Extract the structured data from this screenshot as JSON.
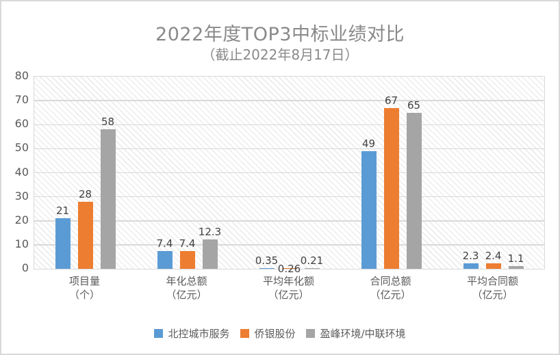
{
  "chart_data": {
    "type": "bar",
    "title": "2022年度TOP3中标业绩对比",
    "subtitle": "（截止2022年8月17日）",
    "categories": [
      "项目量\n（个）",
      "年化总额\n（亿元）",
      "平均年化额\n（亿元）",
      "合同总额\n（亿元）",
      "平均合同额\n（亿元）"
    ],
    "series": [
      {
        "name": "北控城市服务",
        "color": "#5B9BD5",
        "values": [
          21,
          7.4,
          0.35,
          49,
          2.3
        ]
      },
      {
        "name": "侨银股份",
        "color": "#ED7D31",
        "values": [
          28,
          7.4,
          0.26,
          67,
          2.4
        ]
      },
      {
        "name": "盈峰环境/中联环境",
        "color": "#A5A5A5",
        "values": [
          58,
          12.3,
          0.21,
          65,
          1.1
        ]
      }
    ],
    "ylim": [
      0,
      80
    ],
    "yticks": [
      0,
      10,
      20,
      30,
      40,
      50,
      60,
      70,
      80
    ],
    "grid": true,
    "legend_position": "bottom",
    "label_shifts": [
      {
        "category_index": 2,
        "series_index": 1,
        "dy": 12
      }
    ],
    "colors": {
      "title_text": "#898989",
      "axis_text": "#595959",
      "data_label_text": "#404040",
      "gridline": "#d9d9d9"
    }
  }
}
